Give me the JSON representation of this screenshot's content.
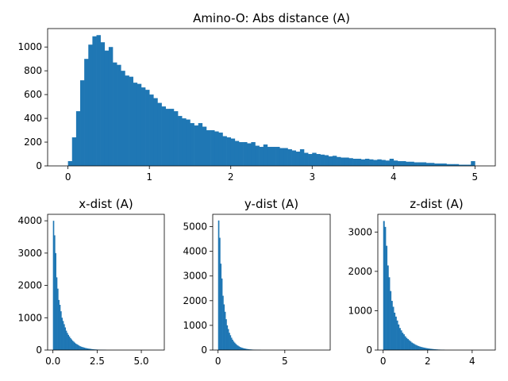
{
  "chart_data": [
    {
      "type": "bar",
      "title": "Amino-O: Abs distance (A)",
      "xlabel": "",
      "ylabel": "",
      "xlim": [
        -0.25,
        5.25
      ],
      "ylim": [
        0,
        1155
      ],
      "xticks": [
        0,
        1,
        2,
        3,
        4,
        5
      ],
      "xtick_labels": [
        "0",
        "1",
        "2",
        "3",
        "4",
        "5"
      ],
      "yticks": [
        0,
        200,
        400,
        600,
        800,
        1000
      ],
      "ytick_labels": [
        "0",
        "200",
        "400",
        "600",
        "800",
        "1000"
      ],
      "bin_start": 0.0,
      "bin_width": 0.05,
      "grid": false,
      "legend": "none",
      "color": "#1f77b4",
      "values": [
        40,
        240,
        460,
        720,
        900,
        1020,
        1090,
        1100,
        1040,
        970,
        1000,
        870,
        850,
        800,
        760,
        750,
        700,
        690,
        660,
        640,
        600,
        570,
        530,
        500,
        480,
        480,
        460,
        420,
        400,
        390,
        360,
        340,
        360,
        330,
        300,
        300,
        290,
        280,
        250,
        240,
        230,
        210,
        200,
        200,
        190,
        200,
        170,
        160,
        180,
        160,
        160,
        160,
        150,
        150,
        140,
        130,
        120,
        140,
        110,
        100,
        110,
        100,
        95,
        90,
        80,
        85,
        75,
        70,
        70,
        65,
        60,
        60,
        55,
        60,
        55,
        50,
        55,
        50,
        45,
        60,
        45,
        40,
        40,
        35,
        35,
        30,
        30,
        30,
        25,
        25,
        20,
        20,
        20,
        15,
        15,
        15,
        10,
        10,
        10,
        40
      ]
    },
    {
      "type": "bar",
      "title": "x-dist (A)",
      "xlabel": "",
      "ylabel": "",
      "xlim": [
        -0.3,
        6.3
      ],
      "ylim": [
        0,
        4200
      ],
      "xticks": [
        0,
        2.5,
        5
      ],
      "xtick_labels": [
        "0.0",
        "2.5",
        "5.0"
      ],
      "yticks": [
        0,
        1000,
        2000,
        3000,
        4000
      ],
      "ytick_labels": [
        "0",
        "1000",
        "2000",
        "3000",
        "4000"
      ],
      "bin_start": 0.0,
      "bin_width": 0.06,
      "grid": false,
      "legend": "none",
      "color": "#1f77b4",
      "values": [
        4000,
        3550,
        3000,
        2250,
        1900,
        1550,
        1400,
        1200,
        1000,
        900,
        800,
        700,
        600,
        530,
        470,
        420,
        370,
        330,
        290,
        260,
        230,
        200,
        180,
        160,
        140,
        120,
        105,
        95,
        85,
        75,
        65,
        58,
        50,
        45,
        40,
        35,
        30,
        26,
        22,
        20,
        17,
        15,
        13,
        12,
        10,
        9,
        8,
        7,
        6,
        5
      ]
    },
    {
      "type": "bar",
      "title": "y-dist (A)",
      "xlabel": "",
      "ylabel": "",
      "xlim": [
        -0.4,
        8.4
      ],
      "ylim": [
        0,
        5500
      ],
      "xticks": [
        0,
        5
      ],
      "xtick_labels": [
        "0",
        "5"
      ],
      "yticks": [
        0,
        1000,
        2000,
        3000,
        4000,
        5000
      ],
      "ytick_labels": [
        "0",
        "1000",
        "2000",
        "3000",
        "4000",
        "5000"
      ],
      "bin_start": 0.0,
      "bin_width": 0.08,
      "grid": false,
      "legend": "none",
      "color": "#1f77b4",
      "values": [
        5250,
        4550,
        3500,
        2900,
        2200,
        1850,
        1550,
        1250,
        1000,
        850,
        700,
        600,
        500,
        420,
        350,
        300,
        250,
        210,
        180,
        150,
        125,
        105,
        90,
        78,
        66,
        56,
        48,
        40,
        34,
        29,
        25,
        21,
        18,
        15,
        13,
        11,
        9,
        8,
        7,
        6
      ]
    },
    {
      "type": "bar",
      "title": "z-dist (A)",
      "xlabel": "",
      "ylabel": "",
      "xlim": [
        -0.24,
        5.04
      ],
      "ylim": [
        0,
        3450
      ],
      "xticks": [
        0,
        2,
        4
      ],
      "xtick_labels": [
        "0",
        "2",
        "4"
      ],
      "yticks": [
        0,
        1000,
        2000,
        3000
      ],
      "ytick_labels": [
        "0",
        "1000",
        "2000",
        "3000"
      ],
      "bin_start": 0.0,
      "bin_width": 0.06,
      "grid": false,
      "legend": "none",
      "color": "#1f77b4",
      "values": [
        3280,
        3130,
        2650,
        2150,
        1850,
        1500,
        1250,
        1100,
        950,
        850,
        750,
        650,
        560,
        500,
        440,
        400,
        350,
        310,
        280,
        250,
        220,
        190,
        170,
        150,
        130,
        115,
        100,
        88,
        78,
        70,
        62,
        55,
        48,
        42,
        37,
        32,
        28,
        24,
        21,
        18,
        15,
        13,
        11,
        9,
        8,
        7
      ]
    }
  ]
}
